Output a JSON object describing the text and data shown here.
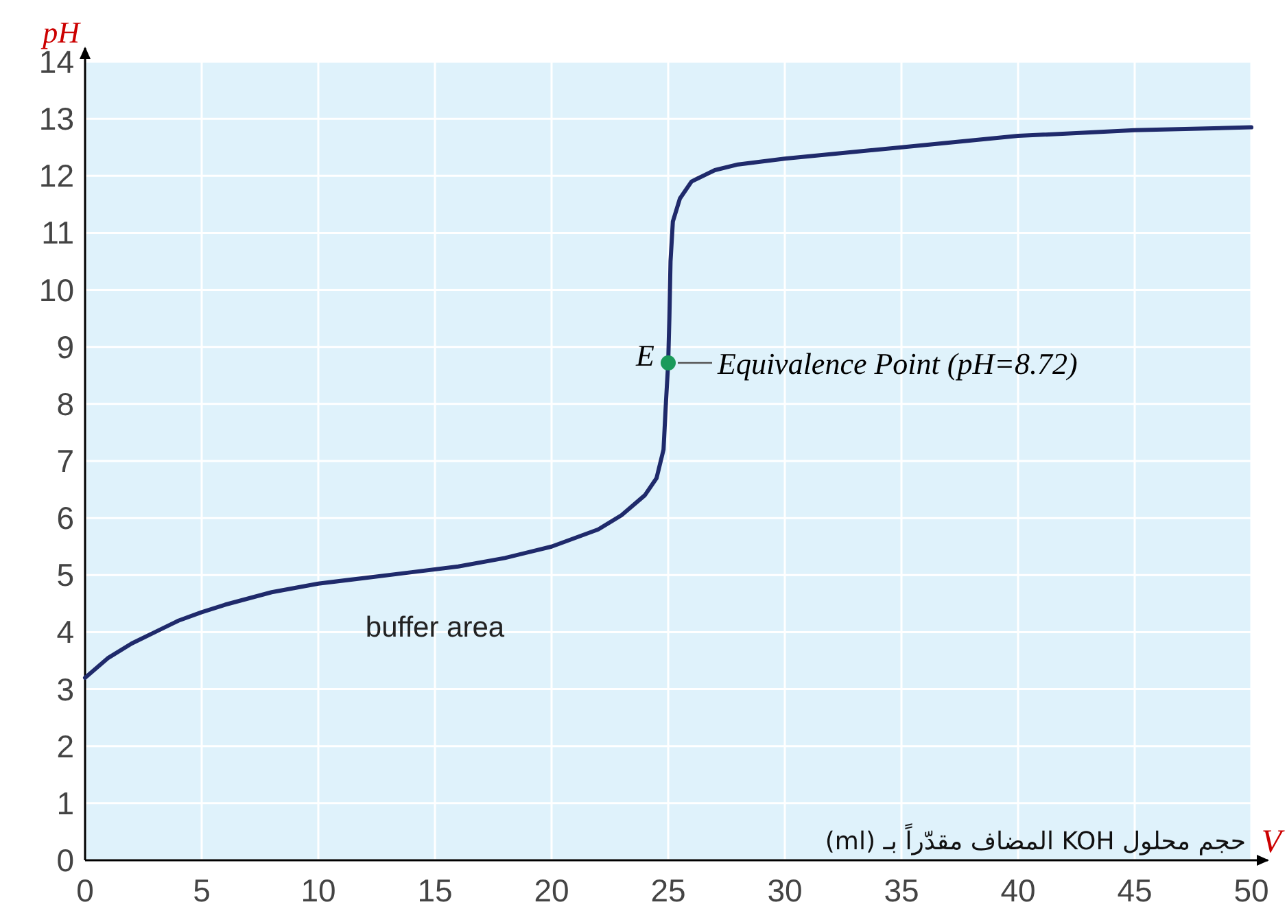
{
  "chart_data": {
    "type": "line",
    "xlabel": "V",
    "ylabel": "pH",
    "xlim": [
      0,
      50
    ],
    "xticks": [
      0,
      5,
      10,
      15,
      20,
      25,
      30,
      35,
      40,
      45,
      50
    ],
    "ylim": [
      0,
      14
    ],
    "yticks": [
      0,
      1,
      2,
      3,
      4,
      5,
      6,
      7,
      8,
      9,
      10,
      11,
      12,
      13,
      14
    ],
    "grid": true,
    "series": [
      {
        "color": "#1f2a6b",
        "x": [
          0,
          1,
          2,
          3,
          4,
          5,
          6,
          8,
          10,
          12,
          14,
          16,
          18,
          20,
          21,
          22,
          23,
          24,
          24.5,
          24.8,
          24.9,
          25,
          25.05,
          25.1,
          25.2,
          25.5,
          26,
          27,
          28,
          30,
          35,
          40,
          45,
          50
        ],
        "values": [
          3.2,
          3.55,
          3.8,
          4.0,
          4.2,
          4.35,
          4.48,
          4.7,
          4.85,
          4.95,
          5.05,
          5.15,
          5.3,
          5.5,
          5.65,
          5.8,
          6.05,
          6.4,
          6.7,
          7.2,
          8.0,
          8.72,
          9.5,
          10.5,
          11.2,
          11.6,
          11.9,
          12.1,
          12.2,
          12.3,
          12.5,
          12.7,
          12.8,
          12.85
        ]
      },
      {
        "type": "scatter",
        "color": "#1a9a5a",
        "marker": "circle",
        "x": [
          25
        ],
        "values": [
          8.72
        ]
      }
    ],
    "annotations": [
      {
        "text": "E",
        "x": 25,
        "y": 8.72
      },
      {
        "text": "Equivalence Point (pH=8.72)",
        "x": 25,
        "y": 8.72
      },
      "buffer area",
      "حجم محلول KOH المضاف مقدّراً بـ (ml)"
    ]
  }
}
